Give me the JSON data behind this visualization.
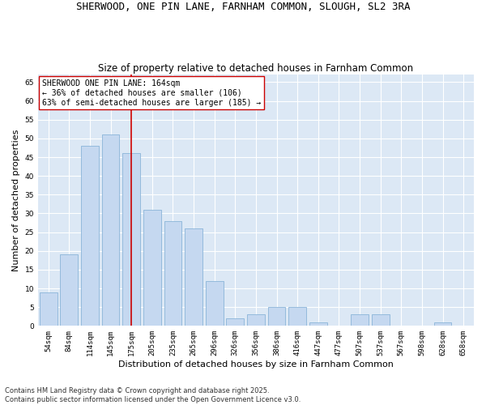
{
  "title1": "SHERWOOD, ONE PIN LANE, FARNHAM COMMON, SLOUGH, SL2 3RA",
  "title2": "Size of property relative to detached houses in Farnham Common",
  "xlabel": "Distribution of detached houses by size in Farnham Common",
  "ylabel": "Number of detached properties",
  "categories": [
    "54sqm",
    "84sqm",
    "114sqm",
    "145sqm",
    "175sqm",
    "205sqm",
    "235sqm",
    "265sqm",
    "296sqm",
    "326sqm",
    "356sqm",
    "386sqm",
    "416sqm",
    "447sqm",
    "477sqm",
    "507sqm",
    "537sqm",
    "567sqm",
    "598sqm",
    "628sqm",
    "658sqm"
  ],
  "values": [
    9,
    19,
    48,
    51,
    46,
    31,
    28,
    26,
    12,
    2,
    3,
    5,
    5,
    1,
    0,
    3,
    3,
    0,
    0,
    1,
    0
  ],
  "bar_color": "#c5d8f0",
  "bar_edge_color": "#8ab4d8",
  "bg_color": "#dce8f5",
  "grid_color": "#ffffff",
  "vline_x": 4,
  "vline_color": "#cc0000",
  "annotation_text": "SHERWOOD ONE PIN LANE: 164sqm\n← 36% of detached houses are smaller (106)\n63% of semi-detached houses are larger (185) →",
  "annotation_box_color": "#ffffff",
  "annotation_box_edge": "#cc0000",
  "ylim": [
    0,
    67
  ],
  "yticks": [
    0,
    5,
    10,
    15,
    20,
    25,
    30,
    35,
    40,
    45,
    50,
    55,
    60,
    65
  ],
  "footer": "Contains HM Land Registry data © Crown copyright and database right 2025.\nContains public sector information licensed under the Open Government Licence v3.0.",
  "title_fontsize": 9,
  "subtitle_fontsize": 8.5,
  "axis_label_fontsize": 8,
  "tick_fontsize": 6.5,
  "annotation_fontsize": 7,
  "footer_fontsize": 6
}
